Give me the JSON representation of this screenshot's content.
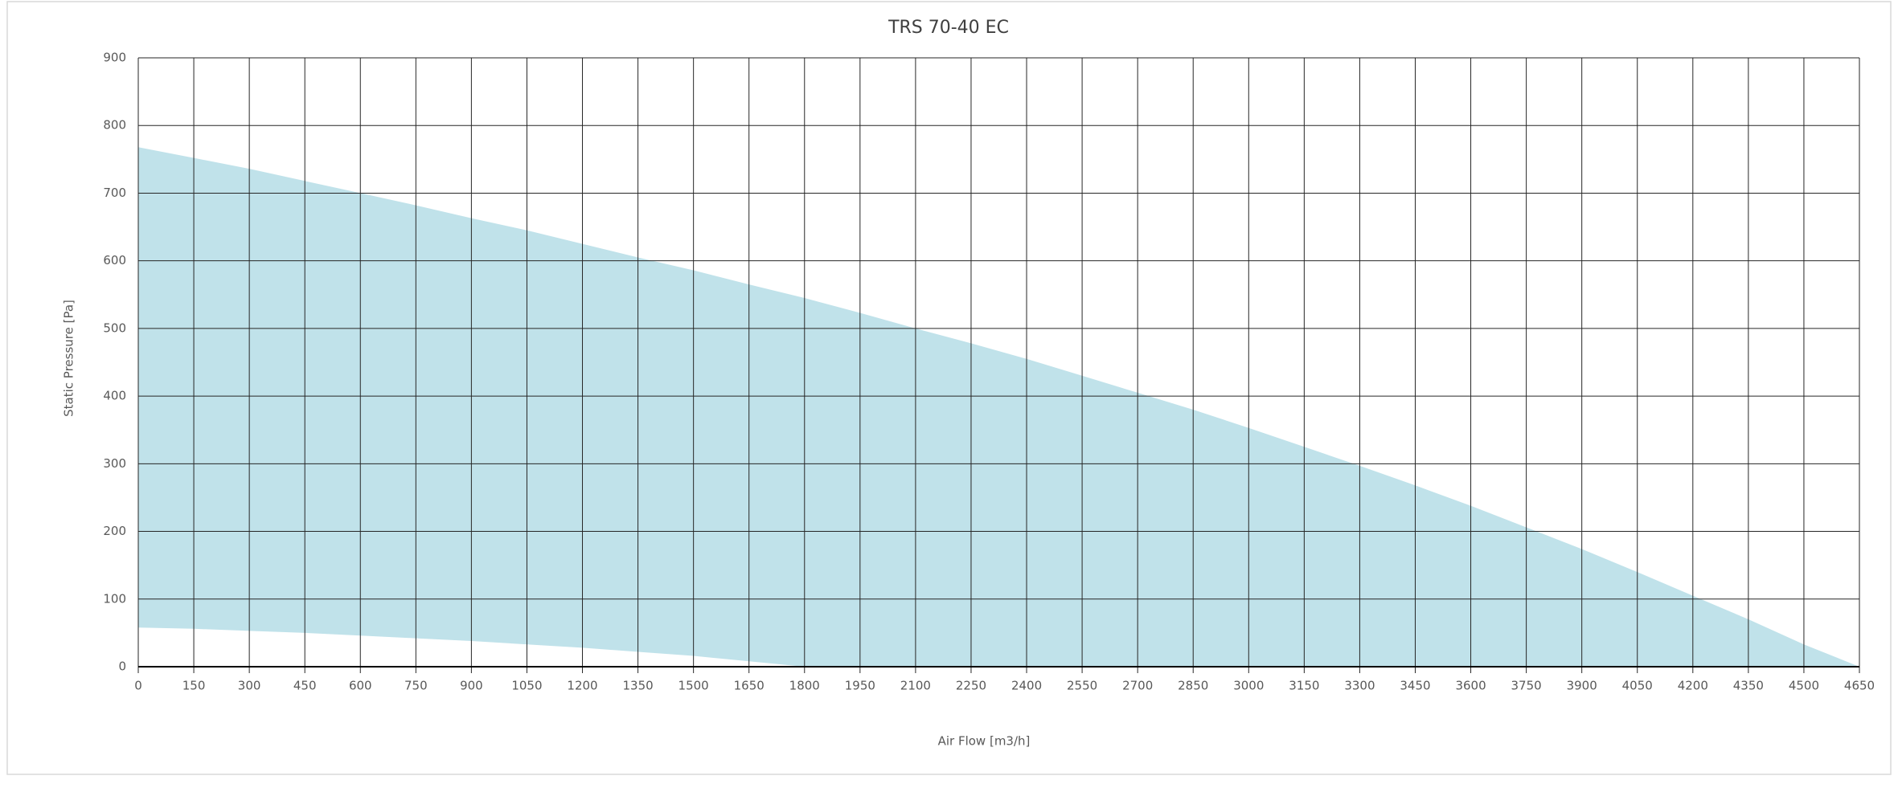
{
  "chart_data": {
    "type": "area_band",
    "title": "TRS 70-40 EC",
    "x_label": "Air Flow [m3/h]",
    "y_label": "Static Pressure [Pa]",
    "x": [
      0,
      150,
      300,
      450,
      600,
      750,
      900,
      1050,
      1200,
      1350,
      1500,
      1650,
      1800,
      1950,
      2100,
      2250,
      2400,
      2550,
      2700,
      2850,
      3000,
      3150,
      3300,
      3450,
      3600,
      3750,
      3900,
      4050,
      4200,
      4350,
      4500,
      4650
    ],
    "series": [
      {
        "color": "#c0e2ea",
        "values": [
          768,
          752,
          736,
          718,
          700,
          682,
          663,
          645,
          625,
          605,
          586,
          565,
          545,
          523,
          500,
          478,
          455,
          430,
          405,
          380,
          353,
          325,
          297,
          268,
          238,
          206,
          174,
          140,
          105,
          70,
          33,
          0
        ]
      },
      {
        "color": "#c0e2ea",
        "values": [
          58,
          56,
          53,
          50,
          46,
          42,
          38,
          33,
          28,
          22,
          16,
          8,
          0,
          0,
          0,
          0,
          0,
          0,
          0,
          0,
          0,
          0,
          0,
          0,
          0,
          0,
          0,
          0,
          0,
          0,
          0,
          0
        ]
      }
    ],
    "xlim": [
      0,
      4650
    ],
    "ylim": [
      0,
      900
    ],
    "xticks": [
      0,
      150,
      300,
      450,
      600,
      750,
      900,
      1050,
      1200,
      1350,
      1500,
      1650,
      1800,
      1950,
      2100,
      2250,
      2400,
      2550,
      2700,
      2850,
      3000,
      3150,
      3300,
      3450,
      3600,
      3750,
      3900,
      4050,
      4200,
      4350,
      4500,
      4650
    ],
    "yticks": [
      0,
      100,
      200,
      300,
      400,
      500,
      600,
      700,
      800,
      900
    ],
    "grid": true
  }
}
